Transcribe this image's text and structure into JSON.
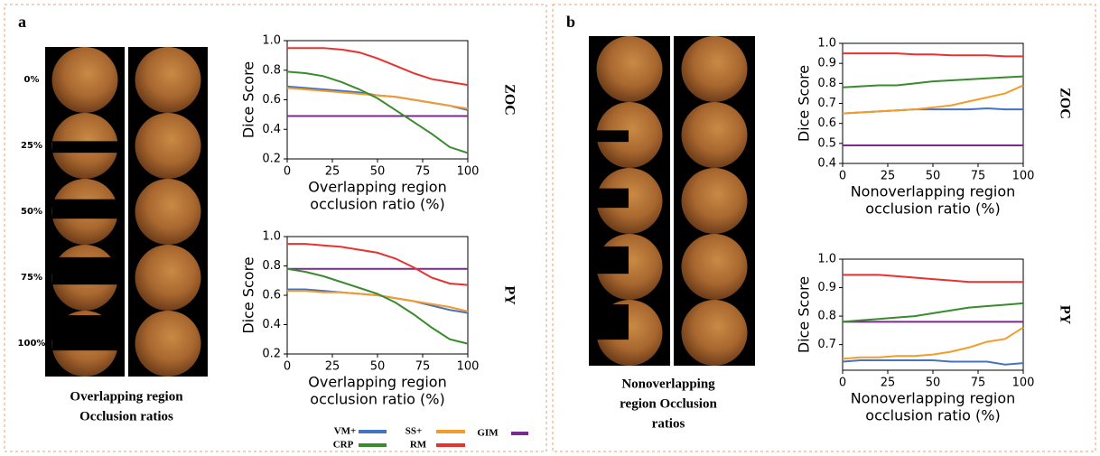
{
  "panels": [
    {
      "label": "a",
      "ratios": [
        "0%",
        "25%",
        "50%",
        "75%",
        "100%"
      ],
      "caption": [
        "Overlapping region",
        "Occlusion ratios"
      ]
    },
    {
      "label": "b",
      "caption": [
        "Nonoverlapping",
        "region Occlusion",
        "ratios"
      ]
    }
  ],
  "legend": [
    {
      "name": "VM+",
      "color": "#4472c4"
    },
    {
      "name": "SS+",
      "color": "#f39c2b"
    },
    {
      "name": "GIM",
      "color": "#7b2a8c"
    },
    {
      "name": "CRP",
      "color": "#3a8a2e"
    },
    {
      "name": "RM",
      "color": "#e8322f"
    }
  ],
  "chart_data": [
    {
      "type": "line",
      "side_label": "ZOC",
      "ylabel": "Dice Score",
      "xlabel": [
        "Overlapping region",
        "occlusion ratio (%)"
      ],
      "x": [
        0,
        10,
        20,
        30,
        40,
        50,
        60,
        70,
        80,
        90,
        100
      ],
      "xlim": [
        0,
        100
      ],
      "xticks": [
        0,
        25,
        50,
        75,
        100
      ],
      "ylim": [
        0.2,
        1.0
      ],
      "yticks": [
        0.2,
        0.4,
        0.6,
        0.8,
        {
          "value": 1,
          "label": "1.0"
        }
      ],
      "series": [
        {
          "color": "#4472c4",
          "values": [
            0.69,
            0.68,
            0.67,
            0.66,
            0.65,
            0.63,
            0.62,
            0.6,
            0.58,
            0.56,
            0.53
          ]
        },
        {
          "color": "#f39c2b",
          "values": [
            0.68,
            0.67,
            0.66,
            0.65,
            0.64,
            0.63,
            0.62,
            0.6,
            0.58,
            0.56,
            0.54
          ]
        },
        {
          "color": "#7b2a8c",
          "values": [
            0.49,
            0.49,
            0.49,
            0.49,
            0.49,
            0.49,
            0.49,
            0.49,
            0.49,
            0.49,
            0.49
          ]
        },
        {
          "color": "#3a8a2e",
          "values": [
            0.79,
            0.78,
            0.76,
            0.72,
            0.67,
            0.61,
            0.53,
            0.45,
            0.37,
            0.28,
            0.24
          ]
        },
        {
          "color": "#e8322f",
          "values": [
            0.95,
            0.95,
            0.95,
            0.94,
            0.92,
            0.88,
            0.83,
            0.78,
            0.74,
            0.72,
            0.7
          ]
        }
      ]
    },
    {
      "type": "line",
      "side_label": "PY",
      "ylabel": "Dice Score",
      "xlabel": [
        "Overlapping region",
        "occlusion ratio (%)"
      ],
      "x": [
        0,
        10,
        20,
        30,
        40,
        50,
        60,
        70,
        80,
        90,
        100
      ],
      "xlim": [
        0,
        100
      ],
      "xticks": [
        0,
        25,
        50,
        75,
        100
      ],
      "ylim": [
        0.2,
        1.0
      ],
      "yticks": [
        0.2,
        0.4,
        0.6,
        0.8,
        {
          "value": 1,
          "label": "1.0"
        }
      ],
      "series": [
        {
          "color": "#4472c4",
          "values": [
            0.64,
            0.64,
            0.63,
            0.62,
            0.61,
            0.6,
            0.58,
            0.56,
            0.53,
            0.5,
            0.48
          ]
        },
        {
          "color": "#f39c2b",
          "values": [
            0.63,
            0.63,
            0.62,
            0.62,
            0.61,
            0.6,
            0.58,
            0.56,
            0.54,
            0.52,
            0.49
          ]
        },
        {
          "color": "#7b2a8c",
          "values": [
            0.78,
            0.78,
            0.78,
            0.78,
            0.78,
            0.78,
            0.78,
            0.78,
            0.78,
            0.78,
            0.78
          ]
        },
        {
          "color": "#3a8a2e",
          "values": [
            0.78,
            0.76,
            0.73,
            0.69,
            0.65,
            0.61,
            0.55,
            0.47,
            0.38,
            0.3,
            0.27
          ]
        },
        {
          "color": "#e8322f",
          "values": [
            0.95,
            0.95,
            0.94,
            0.93,
            0.91,
            0.89,
            0.85,
            0.79,
            0.72,
            0.68,
            0.67
          ]
        }
      ]
    },
    {
      "type": "line",
      "side_label": "ZOC",
      "ylabel": "Dice Score",
      "xlabel": [
        "Nonoverlapping region",
        "occlusion ratio (%)"
      ],
      "x": [
        0,
        10,
        20,
        30,
        40,
        50,
        60,
        70,
        80,
        90,
        100
      ],
      "xlim": [
        0,
        100
      ],
      "xticks": [
        0,
        25,
        50,
        75,
        100
      ],
      "ylim": [
        0.4,
        1.0
      ],
      "yticks": [
        0.4,
        0.5,
        0.6,
        0.7,
        0.8,
        0.9,
        {
          "value": 1,
          "label": "1.0"
        }
      ],
      "series": [
        {
          "color": "#4472c4",
          "values": [
            0.65,
            0.655,
            0.66,
            0.665,
            0.67,
            0.67,
            0.67,
            0.67,
            0.675,
            0.67,
            0.67
          ]
        },
        {
          "color": "#f39c2b",
          "values": [
            0.65,
            0.655,
            0.66,
            0.665,
            0.67,
            0.68,
            0.69,
            0.71,
            0.73,
            0.75,
            0.79
          ]
        },
        {
          "color": "#7b2a8c",
          "values": [
            0.49,
            0.49,
            0.49,
            0.49,
            0.49,
            0.49,
            0.49,
            0.49,
            0.49,
            0.49,
            0.49
          ]
        },
        {
          "color": "#3a8a2e",
          "values": [
            0.78,
            0.785,
            0.79,
            0.79,
            0.8,
            0.81,
            0.815,
            0.82,
            0.825,
            0.83,
            0.835
          ]
        },
        {
          "color": "#e8322f",
          "values": [
            0.95,
            0.95,
            0.95,
            0.95,
            0.945,
            0.945,
            0.94,
            0.94,
            0.94,
            0.935,
            0.935
          ]
        }
      ]
    },
    {
      "type": "line",
      "side_label": "PY",
      "ylabel": "Dice Score",
      "xlabel": [
        "Nonoverlapping region",
        "occlusion ratio (%)"
      ],
      "x": [
        0,
        10,
        20,
        30,
        40,
        50,
        60,
        70,
        80,
        90,
        100
      ],
      "xlim": [
        0,
        100
      ],
      "xticks": [
        0,
        25,
        50,
        75,
        100
      ],
      "ylim": [
        0.61,
        1.0
      ],
      "yticks": [
        0.7,
        0.8,
        0.9,
        {
          "value": 1,
          "label": "1.0"
        }
      ],
      "series": [
        {
          "color": "#4472c4",
          "values": [
            0.64,
            0.645,
            0.645,
            0.645,
            0.645,
            0.645,
            0.64,
            0.64,
            0.64,
            0.63,
            0.635
          ]
        },
        {
          "color": "#f39c2b",
          "values": [
            0.65,
            0.655,
            0.655,
            0.66,
            0.66,
            0.665,
            0.675,
            0.69,
            0.71,
            0.72,
            0.76
          ]
        },
        {
          "color": "#7b2a8c",
          "values": [
            0.78,
            0.78,
            0.78,
            0.78,
            0.78,
            0.78,
            0.78,
            0.78,
            0.78,
            0.78,
            0.78
          ]
        },
        {
          "color": "#3a8a2e",
          "values": [
            0.78,
            0.785,
            0.79,
            0.795,
            0.8,
            0.81,
            0.82,
            0.83,
            0.835,
            0.84,
            0.845
          ]
        },
        {
          "color": "#e8322f",
          "values": [
            0.945,
            0.945,
            0.945,
            0.94,
            0.935,
            0.93,
            0.925,
            0.92,
            0.92,
            0.92,
            0.92
          ]
        }
      ]
    }
  ]
}
